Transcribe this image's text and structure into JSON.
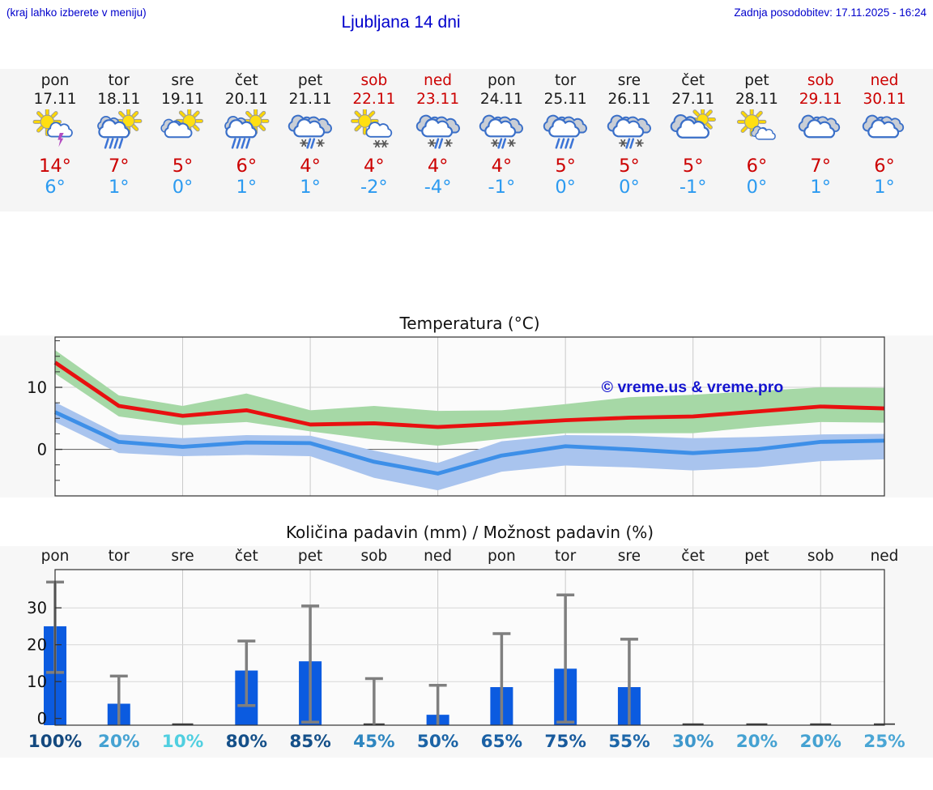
{
  "header": {
    "hint": "(kraj lahko izberete v meniju)",
    "title": "Ljubljana 14 dni",
    "last_update": "Zadnja posodobitev: 17.11.2025 - 16:24"
  },
  "colors": {
    "header_blue": "#0000cc",
    "weekend_red": "#cc0000",
    "max_temp_red": "#cc0000",
    "min_temp_blue": "#2b9af0",
    "strip_background": "#f5f5f5",
    "figure_background": "#f7f7f7",
    "watermark_blue": "#1414cf"
  },
  "days": [
    {
      "name": "pon",
      "date": "17.11",
      "weekend": false,
      "icon": "thunderstorm-sun",
      "tmax": "14°",
      "tmin": "6°",
      "precip_prob": "100%",
      "prob_color": "#14497f"
    },
    {
      "name": "tor",
      "date": "18.11",
      "weekend": false,
      "icon": "rain-showers-sun",
      "tmax": "7°",
      "tmin": "1°",
      "precip_prob": "20%",
      "prob_color": "#45a2d2"
    },
    {
      "name": "sre",
      "date": "19.11",
      "weekend": false,
      "icon": "partly-cloudy",
      "tmax": "5°",
      "tmin": "0°",
      "precip_prob": "10%",
      "prob_color": "#50cfe0"
    },
    {
      "name": "čet",
      "date": "20.11",
      "weekend": false,
      "icon": "rain-showers-sun",
      "tmax": "6°",
      "tmin": "1°",
      "precip_prob": "80%",
      "prob_color": "#155089"
    },
    {
      "name": "pet",
      "date": "21.11",
      "weekend": false,
      "icon": "sleet",
      "tmax": "4°",
      "tmin": "1°",
      "precip_prob": "85%",
      "prob_color": "#155089"
    },
    {
      "name": "sob",
      "date": "22.11",
      "weekend": true,
      "icon": "snow-showers-sun",
      "tmax": "4°",
      "tmin": "-2°",
      "precip_prob": "45%",
      "prob_color": "#2e86c0"
    },
    {
      "name": "ned",
      "date": "23.11",
      "weekend": true,
      "icon": "sleet",
      "tmax": "4°",
      "tmin": "-4°",
      "precip_prob": "50%",
      "prob_color": "#1c64a6"
    },
    {
      "name": "pon",
      "date": "24.11",
      "weekend": false,
      "icon": "sleet",
      "tmax": "4°",
      "tmin": "-1°",
      "precip_prob": "65%",
      "prob_color": "#1a60a4"
    },
    {
      "name": "tor",
      "date": "25.11",
      "weekend": false,
      "icon": "rain",
      "tmax": "5°",
      "tmin": "0°",
      "precip_prob": "75%",
      "prob_color": "#185a9c"
    },
    {
      "name": "sre",
      "date": "26.11",
      "weekend": false,
      "icon": "sleet",
      "tmax": "5°",
      "tmin": "0°",
      "precip_prob": "55%",
      "prob_color": "#1c66a8"
    },
    {
      "name": "čet",
      "date": "27.11",
      "weekend": false,
      "icon": "mostly-cloudy-sun",
      "tmax": "5°",
      "tmin": "-1°",
      "precip_prob": "30%",
      "prob_color": "#3f98cc"
    },
    {
      "name": "pet",
      "date": "28.11",
      "weekend": false,
      "icon": "partly-sunny",
      "tmax": "6°",
      "tmin": "0°",
      "precip_prob": "20%",
      "prob_color": "#45a2d2"
    },
    {
      "name": "sob",
      "date": "29.11",
      "weekend": true,
      "icon": "cloudy",
      "tmax": "7°",
      "tmin": "1°",
      "precip_prob": "20%",
      "prob_color": "#45a2d2"
    },
    {
      "name": "ned",
      "date": "30.11",
      "weekend": true,
      "icon": "cloudy",
      "tmax": "6°",
      "tmin": "1°",
      "precip_prob": "25%",
      "prob_color": "#4aa6d5"
    }
  ],
  "chart_data": [
    {
      "type": "line",
      "title": "Temperatura (°C)",
      "x_labels": [
        "17.11",
        "18.11",
        "19.11",
        "20.11",
        "21.11",
        "22.11",
        "23.11",
        "24.11",
        "25.11",
        "26.11",
        "27.11",
        "28.11",
        "29.11",
        "30.11"
      ],
      "ylim": [
        -7.5,
        18.1
      ],
      "yticks": [
        0,
        10
      ],
      "grid": true,
      "legend_position": "none",
      "watermark": "© vreme.us & vreme.pro",
      "series": [
        {
          "name": "max temperature",
          "color": "#e81010",
          "values": [
            14,
            7,
            5.4,
            6.3,
            4.0,
            4.2,
            3.6,
            4.1,
            4.7,
            5.1,
            5.3,
            6.1,
            6.9,
            6.6
          ]
        },
        {
          "name": "min temperature",
          "color": "#3d8fe8",
          "values": [
            6,
            1.2,
            0.4,
            1.1,
            1.0,
            -2.0,
            -3.9,
            -1.0,
            0.5,
            0.0,
            -0.6,
            0.0,
            1.2,
            1.4
          ]
        }
      ],
      "bands": [
        {
          "name": "max temperature range",
          "color": "#a6d8a6",
          "hi": [
            16,
            8.7,
            7.0,
            9.0,
            6.3,
            7.0,
            6.2,
            6.3,
            7.3,
            8.4,
            8.8,
            9.4,
            10.0,
            9.9
          ],
          "lo": [
            12.2,
            5.3,
            3.9,
            4.4,
            2.9,
            1.6,
            0.6,
            1.7,
            2.6,
            2.6,
            2.6,
            3.6,
            4.4,
            4.3
          ]
        },
        {
          "name": "min temperature range",
          "color": "#a9c4ee",
          "hi": [
            7.6,
            2.4,
            1.8,
            2.3,
            2.2,
            -0.2,
            -2.2,
            1.3,
            2.3,
            2.2,
            1.8,
            2.0,
            2.4,
            2.5
          ],
          "lo": [
            4.4,
            -0.6,
            -1.1,
            -0.9,
            -1.1,
            -4.6,
            -6.6,
            -3.6,
            -2.6,
            -2.9,
            -3.4,
            -2.9,
            -1.9,
            -1.6
          ]
        }
      ]
    },
    {
      "type": "bar",
      "title": "Količina padavin (mm) / Možnost padavin (%)",
      "categories": [
        "pon",
        "tor",
        "sre",
        "čet",
        "pet",
        "sob",
        "ned",
        "pon",
        "tor",
        "sre",
        "čet",
        "pet",
        "sob",
        "ned"
      ],
      "values_mm": [
        25,
        4,
        0.1,
        13,
        15.5,
        0.2,
        1,
        8.5,
        13.5,
        8.5,
        0.1,
        0.2,
        0.1,
        0.1
      ],
      "whisker_hi": [
        37,
        11.5,
        0,
        21,
        30.5,
        10.8,
        9,
        23,
        33.5,
        21.5,
        0,
        0,
        0,
        0
      ],
      "whisker_lo": [
        12.5,
        0,
        0,
        3.5,
        -1,
        0,
        0,
        0,
        -1,
        0,
        0,
        0,
        0,
        0
      ],
      "probabilities": [
        "100%",
        "20%",
        "10%",
        "80%",
        "85%",
        "45%",
        "50%",
        "65%",
        "75%",
        "55%",
        "30%",
        "20%",
        "20%",
        "25%"
      ],
      "ylim": [
        -1.8,
        40.4
      ],
      "yticks": [
        0,
        10,
        20,
        30
      ],
      "grid": true,
      "bar_color": "#0b5be0",
      "whisker_color": "#7f7f7f"
    }
  ]
}
